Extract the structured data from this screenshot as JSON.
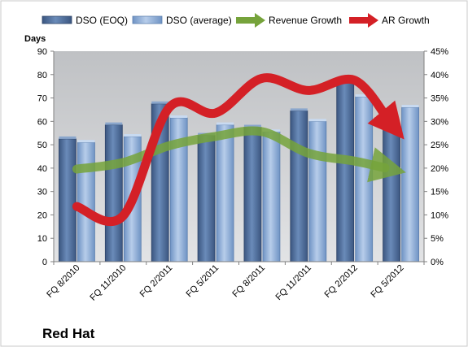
{
  "chart_data": {
    "type": "bar",
    "categories": [
      "FQ 8/2010",
      "FQ 11/2010",
      "FQ 2/2011",
      "FQ 5/2011",
      "FQ 8/2011",
      "FQ 11/2011",
      "FQ 2/2012",
      "FQ 5/2012"
    ],
    "series": [
      {
        "name": "DSO (EOQ)",
        "type": "bar",
        "axis": "left",
        "values": [
          52.5,
          58.5,
          67.5,
          54,
          57.5,
          64.5,
          78,
          57
        ],
        "color": "#4f6d99"
      },
      {
        "name": "DSO (average)",
        "type": "bar",
        "axis": "left",
        "values": [
          51,
          53.5,
          61.5,
          58.5,
          55.5,
          60,
          70.5,
          66
        ],
        "color": "#8fb0dc"
      },
      {
        "name": "Revenue Growth",
        "type": "line",
        "axis": "right",
        "values": [
          0.198,
          0.212,
          0.248,
          0.268,
          0.278,
          0.232,
          0.215,
          0.193
        ],
        "color": "#76a33b"
      },
      {
        "name": "AR Growth",
        "type": "line",
        "axis": "right",
        "values": [
          0.118,
          0.098,
          0.33,
          0.318,
          0.392,
          0.366,
          0.388,
          0.27
        ],
        "color": "#d42026"
      }
    ],
    "left_axis": {
      "label": "Days",
      "min": 0,
      "max": 90,
      "step": 10
    },
    "right_axis": {
      "min": 0,
      "max": 0.45,
      "step": 0.05,
      "format": "percent"
    },
    "legend_position": "top",
    "grid": false,
    "watermark": "Red Hat"
  }
}
